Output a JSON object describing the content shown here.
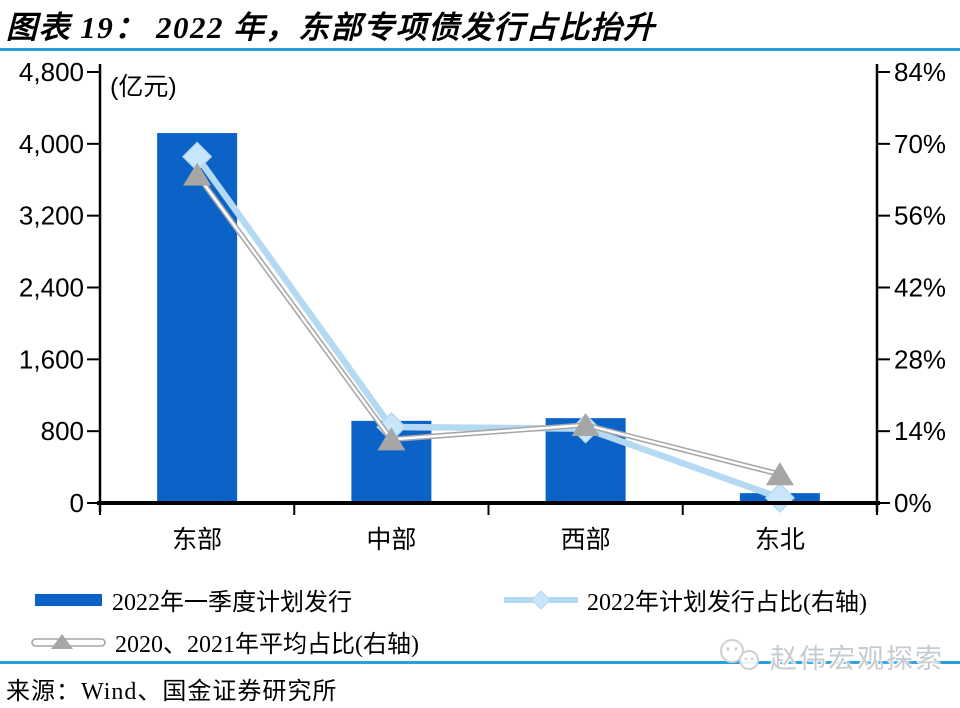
{
  "header": {
    "title": "图表 19：  2022 年，东部专项债发行占比抬升"
  },
  "chart_data": {
    "type": "bar",
    "combo": "bar+line, dual axis",
    "categories": [
      "东部",
      "中部",
      "西部",
      "东北"
    ],
    "unit_label": "(亿元)",
    "series": [
      {
        "name": "2022年一季度计划发行",
        "type": "bar",
        "axis": "left",
        "values": [
          4120,
          915,
          945,
          110
        ],
        "color": "#0b63c8"
      },
      {
        "name": "2022年计划发行占比(右轴)",
        "type": "line",
        "axis": "right",
        "marker": "diamond",
        "values": [
          67.5,
          14.8,
          14.5,
          1.0
        ],
        "line_color": "#b4d9f3",
        "marker_color": "#c9e6fa"
      },
      {
        "name": "2020、2021年平均占比(右轴)",
        "type": "line",
        "axis": "right",
        "marker": "triangle",
        "line_style": "double",
        "values": [
          64.0,
          12.4,
          15.2,
          5.6
        ],
        "line_color": "#a6a6a6",
        "marker_color": "#a6a6a6"
      }
    ],
    "left_axis": {
      "min": 0,
      "max": 4800,
      "step": 800,
      "tick_labels": [
        "0",
        "800",
        "1,600",
        "2,400",
        "3,200",
        "4,000",
        "4,800"
      ]
    },
    "right_axis": {
      "min": 0,
      "max": 84,
      "step": 14,
      "tick_labels": [
        "0%",
        "14%",
        "28%",
        "42%",
        "56%",
        "70%",
        "84%"
      ]
    },
    "grid": "off",
    "legend_position": "bottom-left",
    "axis_color": "#000000"
  },
  "footer": {
    "source": "来源：Wind、国金证券研究所",
    "rule_color": "#2b9fd9"
  },
  "watermark": {
    "text": "赵伟宏观探索"
  }
}
